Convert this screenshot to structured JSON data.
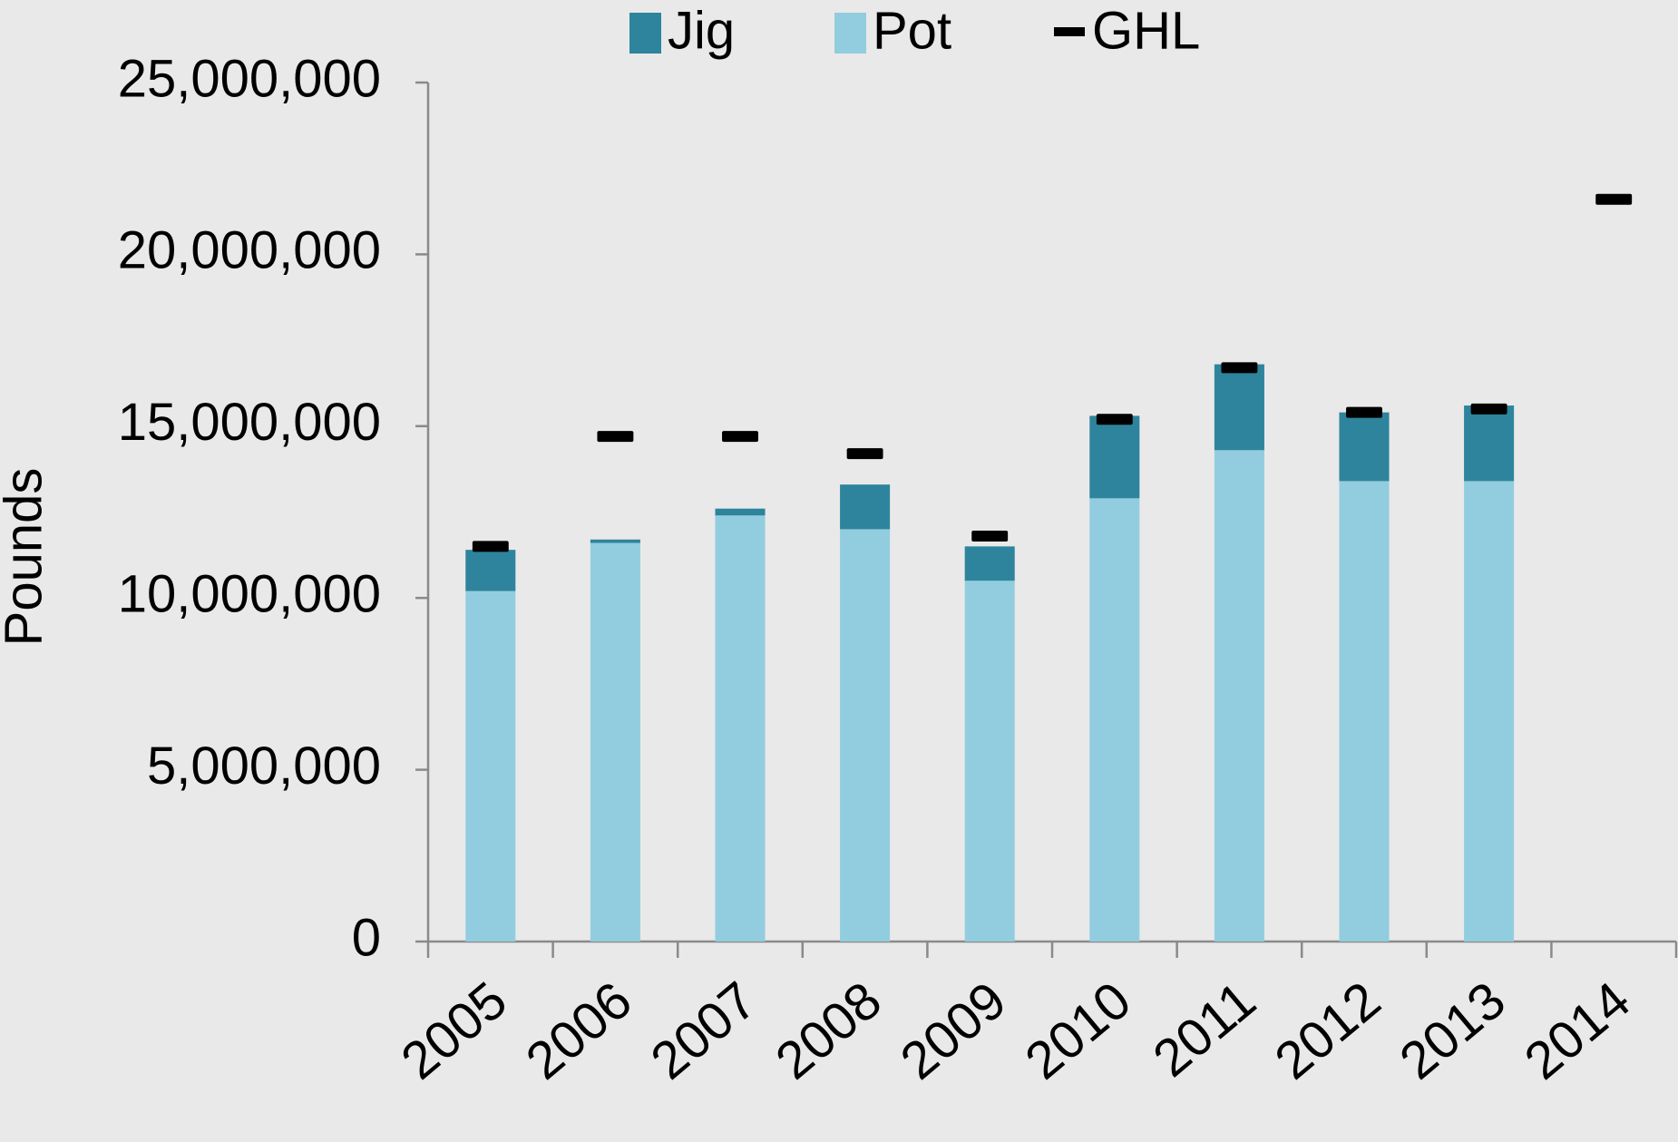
{
  "chart_data": {
    "type": "bar",
    "y_label": "Pounds",
    "categories": [
      "2005",
      "2006",
      "2007",
      "2008",
      "2009",
      "2010",
      "2011",
      "2012",
      "2013",
      "2014"
    ],
    "stacked": true,
    "series": [
      {
        "name": "Jig",
        "type": "bar",
        "color": "#2e849c",
        "values": [
          1200000,
          100000,
          200000,
          1300000,
          1000000,
          2400000,
          2500000,
          2000000,
          2200000,
          null
        ]
      },
      {
        "name": "Pot",
        "type": "bar",
        "color": "#92cddf",
        "values": [
          10200000,
          11600000,
          12400000,
          12000000,
          10500000,
          12900000,
          14300000,
          13400000,
          13400000,
          null
        ]
      },
      {
        "name": "GHL",
        "type": "marker",
        "color": "#000000",
        "values": [
          11500000,
          14700000,
          14700000,
          14200000,
          11800000,
          15200000,
          16700000,
          15400000,
          15500000,
          21600000
        ]
      }
    ],
    "ylim": [
      0,
      25000000
    ],
    "yticks": [
      0,
      {
        "value": 5000000,
        "label": "5,000,000"
      },
      {
        "value": 10000000,
        "label": "10,000,000"
      },
      {
        "value": 15000000,
        "label": "15,000,000"
      },
      {
        "value": 20000000,
        "label": "20,000,000"
      },
      {
        "value": 25000000,
        "label": "25,000,000"
      }
    ],
    "legend": "top"
  }
}
